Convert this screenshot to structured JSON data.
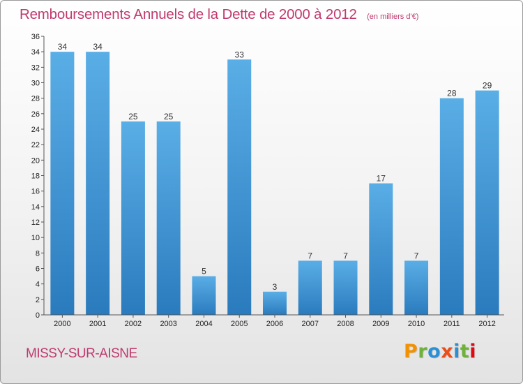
{
  "header": {
    "title": "Remboursements Annuels de la Dette de 2000 à 2012",
    "unit": "(en milliers d'€)"
  },
  "footer": {
    "commune": "MISSY-SUR-AISNE",
    "logo_text": "Proxiti",
    "logo_colors": [
      "#f39200",
      "#6fb13a",
      "#2a8fd4",
      "#e94e1b",
      "#2a8fd4",
      "#6fb13a",
      "#e30613"
    ]
  },
  "chart_data": {
    "type": "bar",
    "title": "Remboursements Annuels de la Dette de 2000 à 2012",
    "categories": [
      "2000",
      "2001",
      "2002",
      "2003",
      "2004",
      "2005",
      "2006",
      "2007",
      "2008",
      "2009",
      "2010",
      "2011",
      "2012"
    ],
    "values": [
      34,
      34,
      25,
      25,
      5,
      33,
      3,
      7,
      7,
      17,
      7,
      28,
      29
    ],
    "xlabel": "",
    "ylabel": "",
    "ylim": [
      0,
      36
    ],
    "yticks": [
      0,
      2,
      4,
      6,
      8,
      10,
      12,
      14,
      16,
      18,
      20,
      22,
      24,
      26,
      28,
      30,
      32,
      34,
      36
    ],
    "bar_color_top": "#5aaee6",
    "bar_color_bottom": "#2a7bbd",
    "grid": false,
    "legend": "none"
  }
}
